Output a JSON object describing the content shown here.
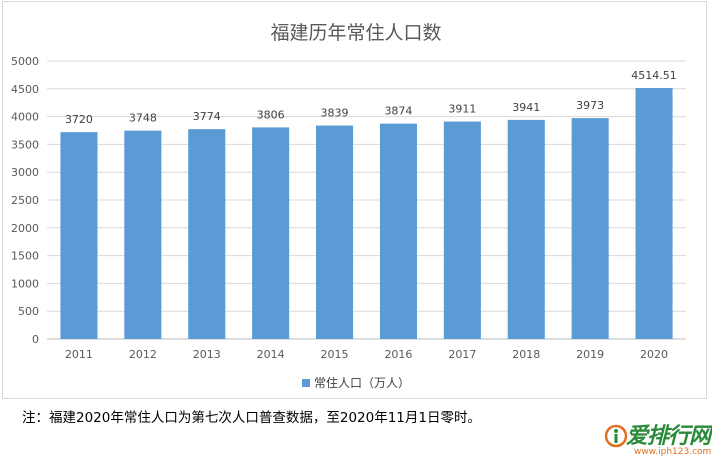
{
  "chart_data": {
    "type": "bar",
    "title": "福建历年常住人口数",
    "categories": [
      "2011",
      "2012",
      "2013",
      "2014",
      "2015",
      "2016",
      "2017",
      "2018",
      "2019",
      "2020"
    ],
    "series": [
      {
        "name": "常住人口（万人）",
        "values": [
          3720,
          3748,
          3774,
          3806,
          3839,
          3874,
          3911,
          3941,
          3973,
          4514.51
        ],
        "data_labels": [
          "3720",
          "3748",
          "3774",
          "3806",
          "3839",
          "3874",
          "3911",
          "3941",
          "3973",
          "4514.51"
        ]
      }
    ],
    "ylim": [
      0,
      5000
    ],
    "yticks": [
      0,
      500,
      1000,
      1500,
      2000,
      2500,
      3000,
      3500,
      4000,
      4500,
      5000
    ],
    "grid": true,
    "legend": "bottom",
    "bar_color": "#5b9bd5"
  },
  "footnote": "注：福建2020年常住人口为第七次人口普查数据，至2020年11月1日零时。",
  "watermark": {
    "text": "爱排行网",
    "url": "www.iph123.com",
    "icon": "watermark-logo-icon"
  }
}
